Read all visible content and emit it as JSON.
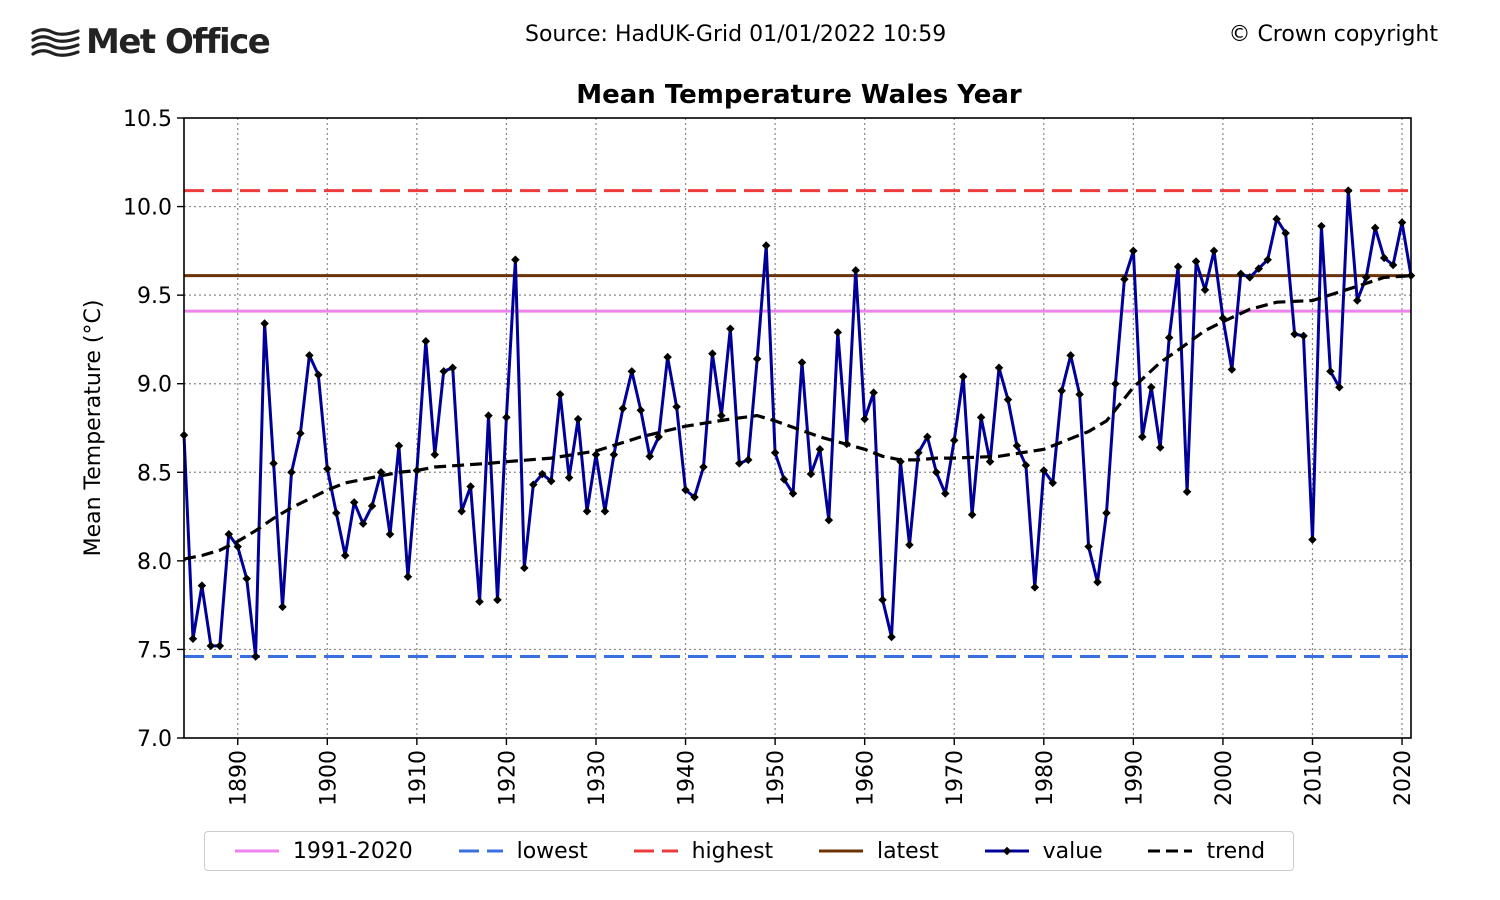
{
  "header": {
    "logo_text": "Met Office",
    "source": "Source: HadUK-Grid 01/01/2022 10:59",
    "copyright": "© Crown copyright"
  },
  "chart_data": {
    "type": "line",
    "title": "Mean Temperature Wales Year",
    "xlabel": "",
    "ylabel": "Mean Temperature (°C)",
    "xlim": [
      1884,
      2021
    ],
    "ylim": [
      7.0,
      10.5
    ],
    "x_ticks": [
      1890,
      1900,
      1910,
      1920,
      1930,
      1940,
      1950,
      1960,
      1970,
      1980,
      1990,
      2000,
      2010,
      2020
    ],
    "y_ticks": [
      "7.0",
      "7.5",
      "8.0",
      "8.5",
      "9.0",
      "9.5",
      "10.0",
      "10.5"
    ],
    "grid": true,
    "legend_position": "bottom",
    "reference_lines": [
      {
        "name": "1991-2020",
        "value": 9.41,
        "color": "#ee82ee",
        "style": "solid"
      },
      {
        "name": "lowest",
        "value": 7.46,
        "color": "#3a6fe0",
        "style": "dashed"
      },
      {
        "name": "highest",
        "value": 10.09,
        "color": "#ee3b3b",
        "style": "dashed"
      },
      {
        "name": "latest",
        "value": 9.61,
        "color": "#6b3305",
        "style": "solid"
      }
    ],
    "series": [
      {
        "name": "value",
        "color": "#000099",
        "x": [
          1884,
          1885,
          1886,
          1887,
          1888,
          1889,
          1890,
          1891,
          1892,
          1893,
          1894,
          1895,
          1896,
          1897,
          1898,
          1899,
          1900,
          1901,
          1902,
          1903,
          1904,
          1905,
          1906,
          1907,
          1908,
          1909,
          1910,
          1911,
          1912,
          1913,
          1914,
          1915,
          1916,
          1917,
          1918,
          1919,
          1920,
          1921,
          1922,
          1923,
          1924,
          1925,
          1926,
          1927,
          1928,
          1929,
          1930,
          1931,
          1932,
          1933,
          1934,
          1935,
          1936,
          1937,
          1938,
          1939,
          1940,
          1941,
          1942,
          1943,
          1944,
          1945,
          1946,
          1947,
          1948,
          1949,
          1950,
          1951,
          1952,
          1953,
          1954,
          1955,
          1956,
          1957,
          1958,
          1959,
          1960,
          1961,
          1962,
          1963,
          1964,
          1965,
          1966,
          1967,
          1968,
          1969,
          1970,
          1971,
          1972,
          1973,
          1974,
          1975,
          1976,
          1977,
          1978,
          1979,
          1980,
          1981,
          1982,
          1983,
          1984,
          1985,
          1986,
          1987,
          1988,
          1989,
          1990,
          1991,
          1992,
          1993,
          1994,
          1995,
          1996,
          1997,
          1998,
          1999,
          2000,
          2001,
          2002,
          2003,
          2004,
          2005,
          2006,
          2007,
          2008,
          2009,
          2010,
          2011,
          2012,
          2013,
          2014,
          2015,
          2016,
          2017,
          2018,
          2019,
          2020,
          2021
        ],
        "y": [
          8.71,
          7.56,
          7.86,
          7.52,
          7.52,
          8.15,
          8.08,
          7.9,
          7.46,
          9.34,
          8.55,
          7.74,
          8.5,
          8.72,
          9.16,
          9.05,
          8.52,
          8.27,
          8.03,
          8.33,
          8.21,
          8.31,
          8.5,
          8.15,
          8.65,
          7.91,
          8.51,
          9.24,
          8.6,
          9.07,
          9.09,
          8.28,
          8.42,
          7.77,
          8.82,
          7.78,
          8.81,
          9.7,
          7.96,
          8.43,
          8.49,
          8.45,
          8.94,
          8.47,
          8.8,
          8.28,
          8.6,
          8.28,
          8.6,
          8.86,
          9.07,
          8.85,
          8.59,
          8.7,
          9.15,
          8.87,
          8.4,
          8.36,
          8.53,
          9.17,
          8.82,
          9.31,
          8.55,
          8.57,
          9.14,
          9.78,
          8.61,
          8.46,
          8.38,
          9.12,
          8.49,
          8.63,
          8.23,
          9.29,
          8.66,
          9.64,
          8.8,
          8.95,
          7.78,
          7.57,
          8.56,
          8.09,
          8.61,
          8.7,
          8.5,
          8.38,
          8.68,
          9.04,
          8.26,
          8.81,
          8.56,
          9.09,
          8.91,
          8.65,
          8.54,
          7.85,
          8.51,
          8.44,
          8.96,
          9.16,
          8.94,
          8.08,
          7.88,
          8.27,
          9.0,
          9.59,
          9.75,
          8.7,
          8.98,
          8.64,
          9.26,
          9.66,
          8.39,
          9.69,
          9.53,
          9.75,
          9.37,
          9.08,
          9.62,
          9.6,
          9.65,
          9.7,
          9.93,
          9.85,
          9.28,
          9.27,
          8.12,
          9.89,
          9.07,
          8.98,
          10.09,
          9.47,
          9.6,
          9.88,
          9.71,
          9.67,
          9.91,
          9.61
        ]
      },
      {
        "name": "trend",
        "color": "#000000",
        "x": [
          1884,
          1886,
          1888,
          1890,
          1892,
          1894,
          1896,
          1898,
          1900,
          1902,
          1904,
          1906,
          1908,
          1910,
          1912,
          1915,
          1918,
          1920,
          1925,
          1930,
          1935,
          1940,
          1945,
          1948,
          1950,
          1955,
          1960,
          1962,
          1964,
          1966,
          1968,
          1970,
          1975,
          1980,
          1985,
          1987,
          1990,
          1993,
          1995,
          1998,
          2000,
          2003,
          2006,
          2010,
          2015,
          2018,
          2021
        ],
        "y": [
          8.01,
          8.03,
          8.06,
          8.11,
          8.17,
          8.24,
          8.3,
          8.35,
          8.4,
          8.44,
          8.46,
          8.48,
          8.5,
          8.51,
          8.53,
          8.54,
          8.55,
          8.56,
          8.58,
          8.62,
          8.7,
          8.76,
          8.8,
          8.82,
          8.79,
          8.7,
          8.63,
          8.59,
          8.57,
          8.57,
          8.58,
          8.58,
          8.59,
          8.63,
          8.73,
          8.79,
          8.98,
          9.12,
          9.19,
          9.3,
          9.35,
          9.42,
          9.46,
          9.47,
          9.55,
          9.6,
          9.61
        ]
      }
    ]
  },
  "legend": {
    "items": [
      {
        "label": "1991-2020"
      },
      {
        "label": "lowest"
      },
      {
        "label": "highest"
      },
      {
        "label": "latest"
      },
      {
        "label": "value"
      },
      {
        "label": "trend"
      }
    ]
  }
}
